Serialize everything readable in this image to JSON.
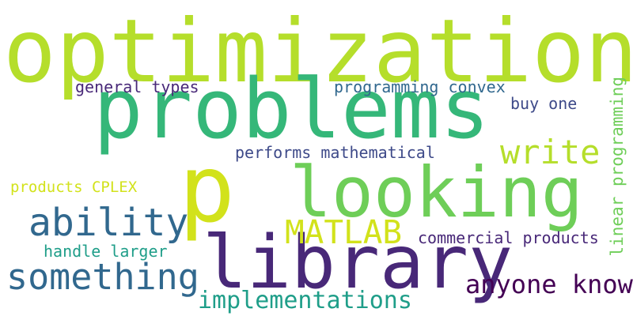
{
  "palette": {
    "background": "#ffffff",
    "yellow_green": "#b5de2b",
    "yellow": "#d2e21b",
    "light_green": "#6ece58",
    "green": "#35b779",
    "teal": "#1f9e89",
    "blue": "#31688e",
    "indigo": "#3e4a89",
    "violet": "#482878",
    "dark_purple": "#440154"
  },
  "words": [
    {
      "text": "optimization"
    },
    {
      "text": "problems"
    },
    {
      "text": "p"
    },
    {
      "text": "looking"
    },
    {
      "text": "library"
    },
    {
      "text": "write"
    },
    {
      "text": "ability"
    },
    {
      "text": "MATLAB"
    },
    {
      "text": "something"
    },
    {
      "text": "implementations"
    },
    {
      "text": "anyone know"
    },
    {
      "text": "general types"
    },
    {
      "text": "programming convex"
    },
    {
      "text": "buy one"
    },
    {
      "text": "performs mathematical"
    },
    {
      "text": "products CPLEX"
    },
    {
      "text": "commercial products"
    },
    {
      "text": "handle larger"
    },
    {
      "text": "linear programming"
    }
  ]
}
